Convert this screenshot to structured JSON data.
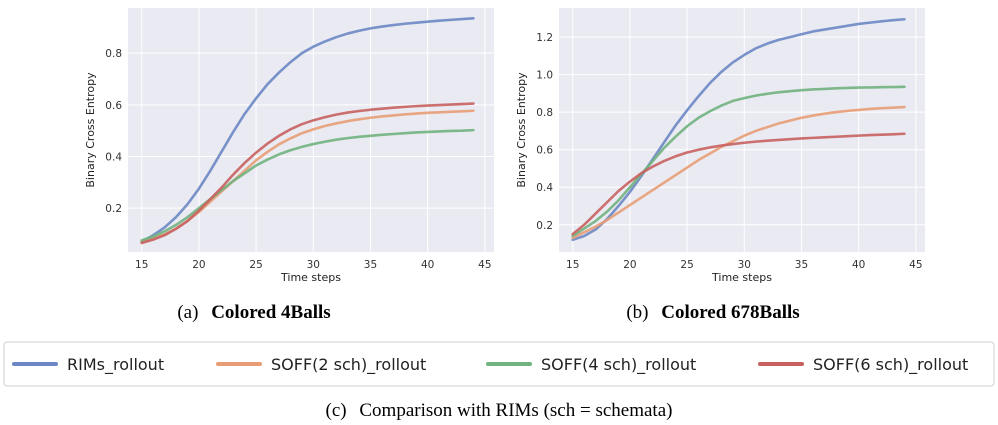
{
  "colors": {
    "plot_background": "#eaeaf2",
    "grid": "#ffffff",
    "series": [
      "#6b88c4",
      "#e89d76",
      "#70b37e",
      "#c8625f"
    ]
  },
  "chart_data": [
    {
      "type": "line",
      "caption_prefix": "(a)",
      "title": "Colored 4Balls",
      "xlabel": "Time steps",
      "ylabel": "Binary Cross Entropy",
      "xlim": [
        13.8,
        45.8
      ],
      "ylim": [
        0.03,
        0.975
      ],
      "xticks": [
        15,
        20,
        25,
        30,
        35,
        40,
        45
      ],
      "yticks": [
        0.2,
        0.4,
        0.6,
        0.8
      ],
      "grid": true,
      "x": [
        15,
        16,
        17,
        18,
        19,
        20,
        21,
        22,
        23,
        24,
        25,
        26,
        27,
        28,
        29,
        30,
        31,
        32,
        33,
        34,
        35,
        36,
        37,
        38,
        39,
        40,
        41,
        42,
        43,
        44
      ],
      "series": [
        {
          "name": "RIMs_rollout",
          "values": [
            0.07,
            0.095,
            0.125,
            0.165,
            0.215,
            0.275,
            0.345,
            0.42,
            0.495,
            0.565,
            0.625,
            0.68,
            0.725,
            0.765,
            0.8,
            0.825,
            0.845,
            0.862,
            0.876,
            0.887,
            0.896,
            0.903,
            0.909,
            0.914,
            0.918,
            0.922,
            0.926,
            0.929,
            0.932,
            0.935
          ]
        },
        {
          "name": "SOFF(2 sch)_rollout",
          "values": [
            0.07,
            0.082,
            0.098,
            0.12,
            0.15,
            0.185,
            0.225,
            0.265,
            0.305,
            0.345,
            0.385,
            0.418,
            0.447,
            0.47,
            0.49,
            0.505,
            0.518,
            0.528,
            0.537,
            0.544,
            0.55,
            0.555,
            0.559,
            0.563,
            0.566,
            0.569,
            0.571,
            0.573,
            0.575,
            0.577
          ]
        },
        {
          "name": "SOFF(4 sch)_rollout",
          "values": [
            0.075,
            0.09,
            0.11,
            0.135,
            0.165,
            0.2,
            0.235,
            0.27,
            0.305,
            0.335,
            0.365,
            0.388,
            0.408,
            0.424,
            0.437,
            0.448,
            0.457,
            0.465,
            0.471,
            0.476,
            0.48,
            0.484,
            0.487,
            0.49,
            0.493,
            0.495,
            0.497,
            0.499,
            0.5,
            0.502
          ]
        },
        {
          "name": "SOFF(6 sch)_rollout",
          "values": [
            0.065,
            0.078,
            0.095,
            0.12,
            0.15,
            0.19,
            0.235,
            0.28,
            0.33,
            0.375,
            0.415,
            0.45,
            0.48,
            0.505,
            0.525,
            0.54,
            0.552,
            0.562,
            0.57,
            0.576,
            0.581,
            0.585,
            0.589,
            0.592,
            0.595,
            0.597,
            0.599,
            0.601,
            0.603,
            0.605
          ]
        }
      ]
    },
    {
      "type": "line",
      "caption_prefix": "(b)",
      "title": "Colored 678Balls",
      "xlabel": "Time steps",
      "ylabel": "Binary Cross Entropy",
      "xlim": [
        13.8,
        45.8
      ],
      "ylim": [
        0.055,
        1.355
      ],
      "xticks": [
        15,
        20,
        25,
        30,
        35,
        40,
        45
      ],
      "yticks": [
        0.2,
        0.4,
        0.6,
        0.8,
        1.0,
        1.2
      ],
      "grid": true,
      "x": [
        15,
        16,
        17,
        18,
        19,
        20,
        21,
        22,
        23,
        24,
        25,
        26,
        27,
        28,
        29,
        30,
        31,
        32,
        33,
        34,
        35,
        36,
        37,
        38,
        39,
        40,
        41,
        42,
        43,
        44
      ],
      "series": [
        {
          "name": "RIMs_rollout",
          "values": [
            0.12,
            0.14,
            0.175,
            0.23,
            0.3,
            0.375,
            0.46,
            0.55,
            0.64,
            0.73,
            0.81,
            0.885,
            0.955,
            1.015,
            1.065,
            1.105,
            1.14,
            1.165,
            1.185,
            1.2,
            1.215,
            1.23,
            1.24,
            1.25,
            1.26,
            1.27,
            1.277,
            1.284,
            1.29,
            1.295
          ]
        },
        {
          "name": "SOFF(2 sch)_rollout",
          "values": [
            0.13,
            0.16,
            0.19,
            0.225,
            0.265,
            0.305,
            0.345,
            0.385,
            0.425,
            0.465,
            0.505,
            0.545,
            0.58,
            0.615,
            0.645,
            0.675,
            0.7,
            0.72,
            0.74,
            0.755,
            0.77,
            0.782,
            0.792,
            0.8,
            0.807,
            0.812,
            0.817,
            0.821,
            0.824,
            0.827
          ]
        },
        {
          "name": "SOFF(4 sch)_rollout",
          "values": [
            0.14,
            0.18,
            0.22,
            0.27,
            0.33,
            0.4,
            0.47,
            0.54,
            0.61,
            0.67,
            0.725,
            0.77,
            0.805,
            0.835,
            0.86,
            0.875,
            0.888,
            0.898,
            0.906,
            0.912,
            0.917,
            0.921,
            0.924,
            0.927,
            0.929,
            0.931,
            0.932,
            0.933,
            0.934,
            0.935
          ]
        },
        {
          "name": "SOFF(6 sch)_rollout",
          "values": [
            0.15,
            0.2,
            0.26,
            0.32,
            0.38,
            0.43,
            0.475,
            0.51,
            0.54,
            0.565,
            0.585,
            0.6,
            0.612,
            0.622,
            0.63,
            0.637,
            0.643,
            0.648,
            0.652,
            0.656,
            0.66,
            0.663,
            0.666,
            0.669,
            0.672,
            0.675,
            0.678,
            0.68,
            0.682,
            0.685
          ]
        }
      ]
    }
  ],
  "legend": {
    "items": [
      "RIMs_rollout",
      "SOFF(2 sch)_rollout",
      "SOFF(4 sch)_rollout",
      "SOFF(6 sch)_rollout"
    ]
  },
  "bottom_caption": {
    "prefix": "(c)",
    "text": "Comparison with RIMs (sch = schemata)"
  }
}
